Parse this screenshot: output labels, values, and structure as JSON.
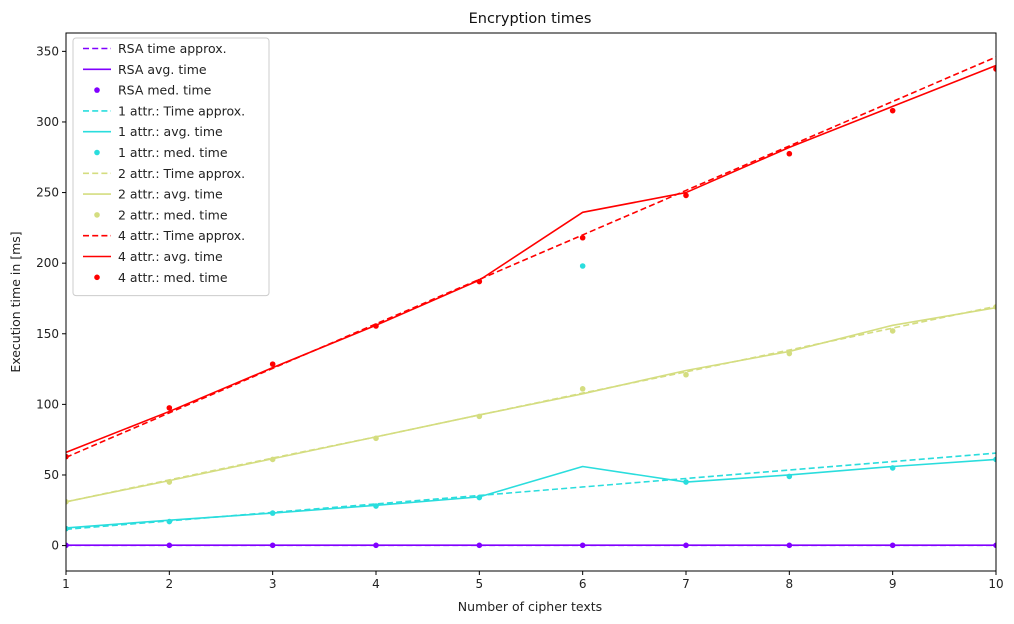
{
  "chart_data": {
    "type": "line",
    "title": "Encryption times",
    "xlabel": "Number of cipher texts",
    "ylabel": "Execution time in [ms]",
    "xlim": [
      1,
      10
    ],
    "ylim": [
      -18,
      363
    ],
    "xticks": [
      1,
      2,
      3,
      4,
      5,
      6,
      7,
      8,
      9,
      10
    ],
    "yticks": [
      0,
      50,
      100,
      150,
      200,
      250,
      300,
      350
    ],
    "grid": false,
    "legend_position": "top-left",
    "x": [
      1,
      2,
      3,
      4,
      5,
      6,
      7,
      8,
      9,
      10
    ],
    "series": [
      {
        "name": "RSA time approx.",
        "kind": "dashed",
        "color": "#8000ff",
        "values": [
          0.2,
          0.2,
          0.2,
          0.2,
          0.2,
          0.2,
          0.2,
          0.2,
          0.2,
          0.2
        ]
      },
      {
        "name": "RSA avg. time",
        "kind": "solid",
        "color": "#8000ff",
        "values": [
          0.3,
          0.3,
          0.3,
          0.3,
          0.3,
          0.3,
          0.3,
          0.3,
          0.3,
          0.3
        ]
      },
      {
        "name": "RSA med. time",
        "kind": "points",
        "color": "#8000ff",
        "values": [
          0.2,
          0.2,
          0.2,
          0.2,
          0.2,
          0.2,
          0.2,
          0.2,
          0.2,
          0.2
        ]
      },
      {
        "name": "1 attr.: Time approx.",
        "kind": "dashed",
        "color": "#2adddd",
        "values": [
          11.5,
          17.5,
          23.5,
          29.5,
          35.5,
          41.5,
          47.5,
          53.5,
          59.5,
          65.5
        ]
      },
      {
        "name": "1 attr.: avg. time",
        "kind": "solid",
        "color": "#2adddd",
        "values": [
          12.5,
          18,
          23,
          28.5,
          34.5,
          56,
          45,
          50,
          56,
          61
        ]
      },
      {
        "name": "1 attr.: med. time",
        "kind": "points",
        "color": "#2adddd",
        "values": [
          12,
          17,
          23,
          28,
          34,
          198,
          45,
          49,
          55,
          61
        ]
      },
      {
        "name": "2 attr.: Time approx.",
        "kind": "dashed",
        "color": "#d4dd80",
        "values": [
          31,
          46.5,
          62,
          77,
          92.5,
          108,
          123,
          138.5,
          154,
          169.5
        ]
      },
      {
        "name": "2 attr.: avg. time",
        "kind": "solid",
        "color": "#d4dd80",
        "values": [
          31,
          46,
          61.5,
          77,
          92.5,
          107.5,
          124,
          137.5,
          156,
          168.5
        ]
      },
      {
        "name": "2 attr.: med. time",
        "kind": "points",
        "color": "#d4dd80",
        "values": [
          31,
          45,
          61,
          76,
          91.5,
          111,
          121,
          136,
          152,
          169
        ]
      },
      {
        "name": "4 attr.: Time approx.",
        "kind": "dashed",
        "color": "#ff0000",
        "values": [
          62.5,
          94,
          125.5,
          157,
          188.5,
          220,
          251.5,
          283,
          314.5,
          346
        ]
      },
      {
        "name": "4 attr.: avg. time",
        "kind": "solid",
        "color": "#ff0000",
        "values": [
          66,
          95,
          126,
          156,
          188,
          236,
          250,
          282,
          311,
          340
        ]
      },
      {
        "name": "4 attr.: med. time",
        "kind": "points",
        "color": "#ff0000",
        "values": [
          63,
          97.5,
          128.5,
          155.5,
          187,
          218,
          248,
          277.5,
          308,
          337.5
        ]
      }
    ]
  }
}
